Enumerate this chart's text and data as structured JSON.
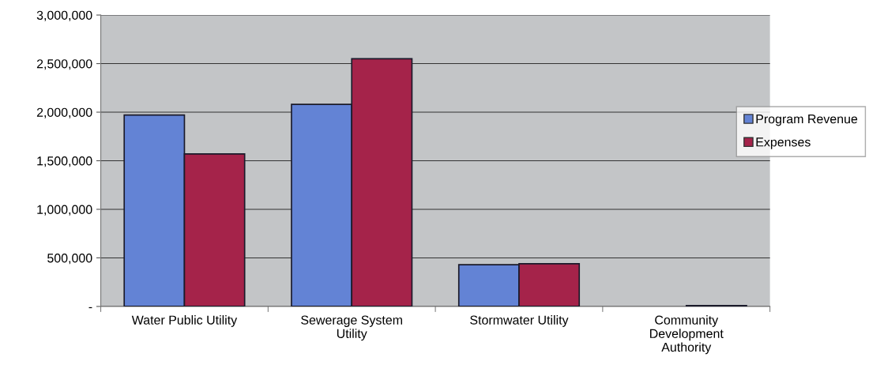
{
  "chart_data": {
    "type": "bar",
    "categories": [
      "Water Public Utility",
      "Sewerage System\nUtility",
      "Stormwater Utility",
      "Community\nDevelopment\nAuthority"
    ],
    "series": [
      {
        "name": "Program Revenue",
        "color": "#6383d5",
        "values": [
          1970000,
          2080000,
          430000,
          null
        ]
      },
      {
        "name": "Expenses",
        "color": "#a5234a",
        "values": [
          1570000,
          2550000,
          440000,
          10000
        ]
      }
    ],
    "ylim": [
      0,
      3000000
    ],
    "yticks": [
      {
        "value": 0,
        "label": "-"
      },
      {
        "value": 500000,
        "label": "500,000"
      },
      {
        "value": 1000000,
        "label": "1,000,000"
      },
      {
        "value": 1500000,
        "label": "1,500,000"
      },
      {
        "value": 2000000,
        "label": "2,000,000"
      },
      {
        "value": 2500000,
        "label": "2,500,000"
      },
      {
        "value": 3000000,
        "label": "3,000,000"
      }
    ],
    "grid": "y",
    "legend": "right"
  }
}
